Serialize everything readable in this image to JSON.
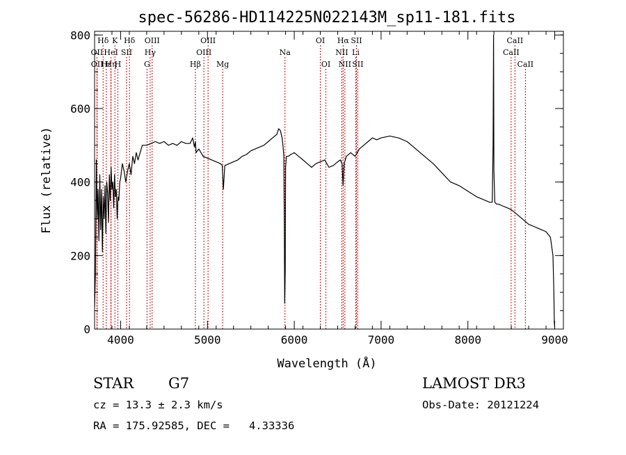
{
  "chart_data": {
    "type": "line",
    "title": "spec-56286-HD114225N022143M_sp11-181.fits",
    "xlabel": "Wavelength (Å)",
    "ylabel": "Flux (relative)",
    "xlim": [
      3700,
      9100
    ],
    "ylim": [
      0,
      810
    ],
    "x_ticks": [
      4000,
      5000,
      6000,
      7000,
      8000,
      9000
    ],
    "y_ticks": [
      0,
      200,
      400,
      600,
      800
    ],
    "x_minor_step": 200,
    "y_minor_step": 50,
    "grid": false,
    "series": [
      {
        "name": "flux",
        "x": [
          3700,
          3710,
          3720,
          3730,
          3740,
          3750,
          3760,
          3770,
          3780,
          3790,
          3800,
          3810,
          3820,
          3830,
          3840,
          3850,
          3860,
          3870,
          3880,
          3890,
          3900,
          3910,
          3920,
          3930,
          3940,
          3950,
          3960,
          3970,
          3980,
          3990,
          4000,
          4020,
          4040,
          4060,
          4080,
          4100,
          4120,
          4140,
          4160,
          4180,
          4200,
          4250,
          4300,
          4350,
          4400,
          4450,
          4500,
          4550,
          4600,
          4650,
          4700,
          4750,
          4800,
          4830,
          4850,
          4861,
          4870,
          4900,
          4950,
          5000,
          5050,
          5100,
          5150,
          5170,
          5183,
          5200,
          5250,
          5300,
          5350,
          5400,
          5450,
          5500,
          5550,
          5600,
          5650,
          5700,
          5750,
          5800,
          5820,
          5840,
          5860,
          5870,
          5880,
          5885,
          5890,
          5893,
          5896,
          5900,
          5910,
          5930,
          5960,
          6000,
          6050,
          6100,
          6150,
          6200,
          6250,
          6300,
          6350,
          6400,
          6450,
          6500,
          6530,
          6550,
          6563,
          6575,
          6600,
          6650,
          6700,
          6750,
          6800,
          6850,
          6900,
          6950,
          7000,
          7100,
          7200,
          7300,
          7400,
          7500,
          7600,
          7700,
          7800,
          7900,
          8000,
          8100,
          8200,
          8250,
          8280,
          8290,
          8296,
          8300,
          8310,
          8330,
          8350,
          8400,
          8450,
          8500,
          8550,
          8600,
          8650,
          8700,
          8750,
          8800,
          8850,
          8900,
          8950,
          8980,
          8990,
          8995,
          9000
        ],
        "values": [
          60,
          150,
          460,
          300,
          380,
          240,
          420,
          270,
          380,
          210,
          360,
          300,
          390,
          260,
          400,
          370,
          290,
          420,
          350,
          440,
          380,
          400,
          330,
          420,
          360,
          380,
          300,
          360,
          350,
          400,
          410,
          450,
          430,
          400,
          430,
          450,
          420,
          470,
          450,
          480,
          460,
          500,
          500,
          505,
          510,
          505,
          510,
          500,
          505,
          500,
          510,
          505,
          505,
          520,
          495,
          510,
          480,
          490,
          470,
          465,
          460,
          455,
          450,
          445,
          380,
          445,
          450,
          455,
          460,
          470,
          475,
          485,
          490,
          495,
          500,
          510,
          520,
          530,
          545,
          540,
          520,
          500,
          470,
          300,
          70,
          110,
          160,
          440,
          470,
          470,
          475,
          480,
          470,
          460,
          450,
          440,
          450,
          455,
          460,
          440,
          445,
          455,
          460,
          450,
          390,
          450,
          470,
          480,
          470,
          490,
          500,
          510,
          520,
          515,
          520,
          525,
          520,
          510,
          490,
          470,
          450,
          425,
          400,
          390,
          375,
          360,
          350,
          345,
          345,
          500,
          800,
          430,
          345,
          340,
          340,
          335,
          330,
          325,
          315,
          305,
          295,
          285,
          280,
          275,
          270,
          265,
          250,
          200,
          100,
          20,
          5
        ]
      }
    ],
    "line_markers": [
      {
        "label": "Hδ",
        "x": 3798,
        "row": 1
      },
      {
        "label": "OII",
        "x": 3727,
        "row": 2
      },
      {
        "label": "OII",
        "x": 3729,
        "row": 3
      },
      {
        "label": "Hε",
        "x": 3835,
        "row": 3
      },
      {
        "label": "Hη",
        "x": 3889,
        "row": 3
      },
      {
        "label": "K",
        "x": 3934,
        "row": 1
      },
      {
        "label": "HeI",
        "x": 3889,
        "row": 2
      },
      {
        "label": "SII",
        "x": 4068,
        "row": 2
      },
      {
        "label": "H",
        "x": 3968,
        "row": 3
      },
      {
        "label": "Hδ",
        "x": 4102,
        "row": 1
      },
      {
        "label": "OIII",
        "x": 4363,
        "row": 1
      },
      {
        "label": "Hγ",
        "x": 4340,
        "row": 2
      },
      {
        "label": "G",
        "x": 4304,
        "row": 3
      },
      {
        "label": "Hβ",
        "x": 4861,
        "row": 3
      },
      {
        "label": "OIII",
        "x": 4959,
        "row": 2
      },
      {
        "label": "OIII",
        "x": 5007,
        "row": 1
      },
      {
        "label": "Mg",
        "x": 5175,
        "row": 3
      },
      {
        "label": "Na",
        "x": 5893,
        "row": 2
      },
      {
        "label": "OI",
        "x": 6300,
        "row": 1
      },
      {
        "label": "OI",
        "x": 6364,
        "row": 3
      },
      {
        "label": "Hα",
        "x": 6563,
        "row": 1
      },
      {
        "label": "NII",
        "x": 6548,
        "row": 2
      },
      {
        "label": "NII",
        "x": 6583,
        "row": 3
      },
      {
        "label": "SII",
        "x": 6716,
        "row": 1
      },
      {
        "label": "Li",
        "x": 6708,
        "row": 2
      },
      {
        "label": "SII",
        "x": 6731,
        "row": 3
      },
      {
        "label": "CaII",
        "x": 8542,
        "row": 1
      },
      {
        "label": "CaII",
        "x": 8498,
        "row": 2
      },
      {
        "label": "CaII",
        "x": 8662,
        "row": 3
      }
    ],
    "marker_color": "#cc0000"
  },
  "info": {
    "object_class": "STAR",
    "subclass": "G7",
    "survey": "LAMOST DR3",
    "redshift": "cz = 13.3 ± 2.3 km/s",
    "obs_date": "Obs-Date: 20121224",
    "coords": "RA = 175.92585, DEC =   4.33336"
  }
}
